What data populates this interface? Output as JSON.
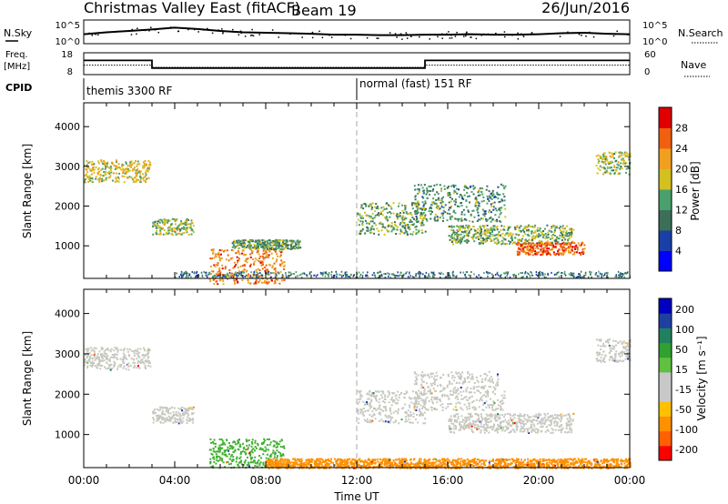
{
  "header": {
    "station": "Christmas Valley East (fitACF)",
    "beam": "Beam 19",
    "date": "26/Jun/2016"
  },
  "strip_labels": {
    "nsky": "N.Sky",
    "nsearch": "N.Search",
    "freq_line1": "Freq.",
    "freq_line2": "[MHz]",
    "nave": "Nave",
    "cpid": "CPID"
  },
  "cpid_modes": [
    {
      "label": "themis 3300 RF",
      "start": "00:00"
    },
    {
      "label": "normal (fast) 151 RF",
      "start": "12:00"
    }
  ],
  "colors": {
    "power_scale": [
      "#0000ff",
      "#1a3fa6",
      "#3c6f5a",
      "#4aa06a",
      "#d4c020",
      "#f0a020",
      "#f06010",
      "#e00000"
    ],
    "velocity_scale": [
      "#ff0000",
      "#ff6000",
      "#ff9000",
      "#ffc000",
      "#c8c8c8",
      "#c8c8c8",
      "#60c040",
      "#30a030",
      "#208060",
      "#2040a0",
      "#0000c0"
    ]
  },
  "chart_data": [
    {
      "type": "line",
      "name": "noise-strip",
      "ylabel_left": "N.Sky",
      "ylabel_right": "N.Search",
      "left_ticks": [
        "10^5",
        "10^0"
      ],
      "right_ticks": [
        "10^5",
        "10^0"
      ],
      "x": [
        "00:00",
        "01:00",
        "02:00",
        "03:00",
        "04:00",
        "05:00",
        "06:00",
        "07:00",
        "08:00",
        "09:00",
        "10:00",
        "11:00",
        "12:00",
        "13:00",
        "14:00",
        "15:00",
        "16:00",
        "17:00",
        "18:00",
        "19:00",
        "20:00",
        "21:00",
        "22:00",
        "23:00",
        "24:00"
      ],
      "series": [
        {
          "values": [
            2.0,
            2.4,
            2.7,
            3.0,
            3.4,
            3.1,
            2.7,
            2.4,
            2.3,
            2.2,
            2.1,
            1.9,
            1.9,
            1.8,
            1.8,
            1.9,
            1.9,
            2.0,
            1.9,
            1.9,
            2.0,
            2.2,
            2.3,
            2.1,
            2.0
          ]
        }
      ],
      "ylim": [
        0,
        5
      ]
    },
    {
      "type": "line",
      "name": "freq-strip",
      "ylabel_left": "Freq. [MHz]",
      "ylabel_right": "Nave",
      "left_ticks": [
        18,
        8
      ],
      "right_ticks": [
        60,
        0
      ],
      "steps": [
        {
          "from": "00:00",
          "to": "03:00",
          "freq": 14.5,
          "nave": 26
        },
        {
          "from": "03:00",
          "to": "15:00",
          "freq": 11.0,
          "nave": 20
        },
        {
          "from": "15:00",
          "to": "24:00",
          "freq": 14.5,
          "nave": 26
        }
      ],
      "ylim": [
        8,
        18
      ]
    },
    {
      "type": "heatmap",
      "name": "power-panel",
      "ylabel": "Slant Range [km]",
      "yticks": [
        1000,
        2000,
        3000,
        4000
      ],
      "ylim": [
        180,
        4600
      ],
      "xlim": [
        0,
        24
      ],
      "colorbar_label": "Power [dB]",
      "colorbar_ticks": [
        4,
        8,
        12,
        16,
        20,
        24,
        28
      ],
      "colorbar_range": [
        0,
        32
      ],
      "scatter_regions": [
        {
          "t0": 0.0,
          "t1": 2.9,
          "r_center": 2900,
          "r_width": 350,
          "level": 19
        },
        {
          "t0": 3.0,
          "t1": 4.8,
          "r_center": 1500,
          "r_width": 250,
          "level": 16
        },
        {
          "t0": 5.5,
          "t1": 8.8,
          "r_center": 500,
          "r_width": 550,
          "level": 24
        },
        {
          "t0": 6.5,
          "t1": 9.5,
          "r_center": 1050,
          "r_width": 150,
          "level": 13
        },
        {
          "t0": 12.0,
          "t1": 15.0,
          "r_center": 1700,
          "r_width": 500,
          "level": 14
        },
        {
          "t0": 14.5,
          "t1": 18.5,
          "r_center": 2100,
          "r_width": 600,
          "level": 12
        },
        {
          "t0": 16.0,
          "t1": 21.5,
          "r_center": 1300,
          "r_width": 300,
          "level": 15
        },
        {
          "t0": 19.0,
          "t1": 22.0,
          "r_center": 950,
          "r_width": 200,
          "level": 26
        },
        {
          "t0": 22.5,
          "t1": 24.0,
          "r_center": 3100,
          "r_width": 350,
          "level": 16
        }
      ]
    },
    {
      "type": "heatmap",
      "name": "velocity-panel",
      "ylabel": "Slant Range [km]",
      "yticks": [
        1000,
        2000,
        3000,
        4000
      ],
      "ylim": [
        180,
        4600
      ],
      "xlim": [
        0,
        24
      ],
      "xticks": [
        "00:00",
        "04:00",
        "08:00",
        "12:00",
        "16:00",
        "20:00",
        "00:00"
      ],
      "xlabel": "Time UT",
      "colorbar_label": "Velocity [m s⁻¹]",
      "colorbar_ticks": [
        200,
        100,
        50,
        15,
        -15,
        -50,
        -100,
        -200
      ],
      "scatter_regions": [
        {
          "t0": 0.0,
          "t1": 2.9,
          "r_center": 2900,
          "r_width": 350,
          "level": 0
        },
        {
          "t0": 3.0,
          "t1": 4.8,
          "r_center": 1500,
          "r_width": 250,
          "level": 0
        },
        {
          "t0": 5.5,
          "t1": 8.8,
          "r_center": 550,
          "r_width": 450,
          "level": 60
        },
        {
          "t0": 8.0,
          "t1": 24.0,
          "r_center": 300,
          "r_width": 150,
          "level": -70
        },
        {
          "t0": 12.0,
          "t1": 15.0,
          "r_center": 1700,
          "r_width": 500,
          "level": 0
        },
        {
          "t0": 14.5,
          "t1": 18.5,
          "r_center": 2100,
          "r_width": 600,
          "level": 0
        },
        {
          "t0": 16.0,
          "t1": 21.5,
          "r_center": 1300,
          "r_width": 300,
          "level": 0
        },
        {
          "t0": 22.5,
          "t1": 24.0,
          "r_center": 3100,
          "r_width": 350,
          "level": 0
        }
      ]
    }
  ]
}
